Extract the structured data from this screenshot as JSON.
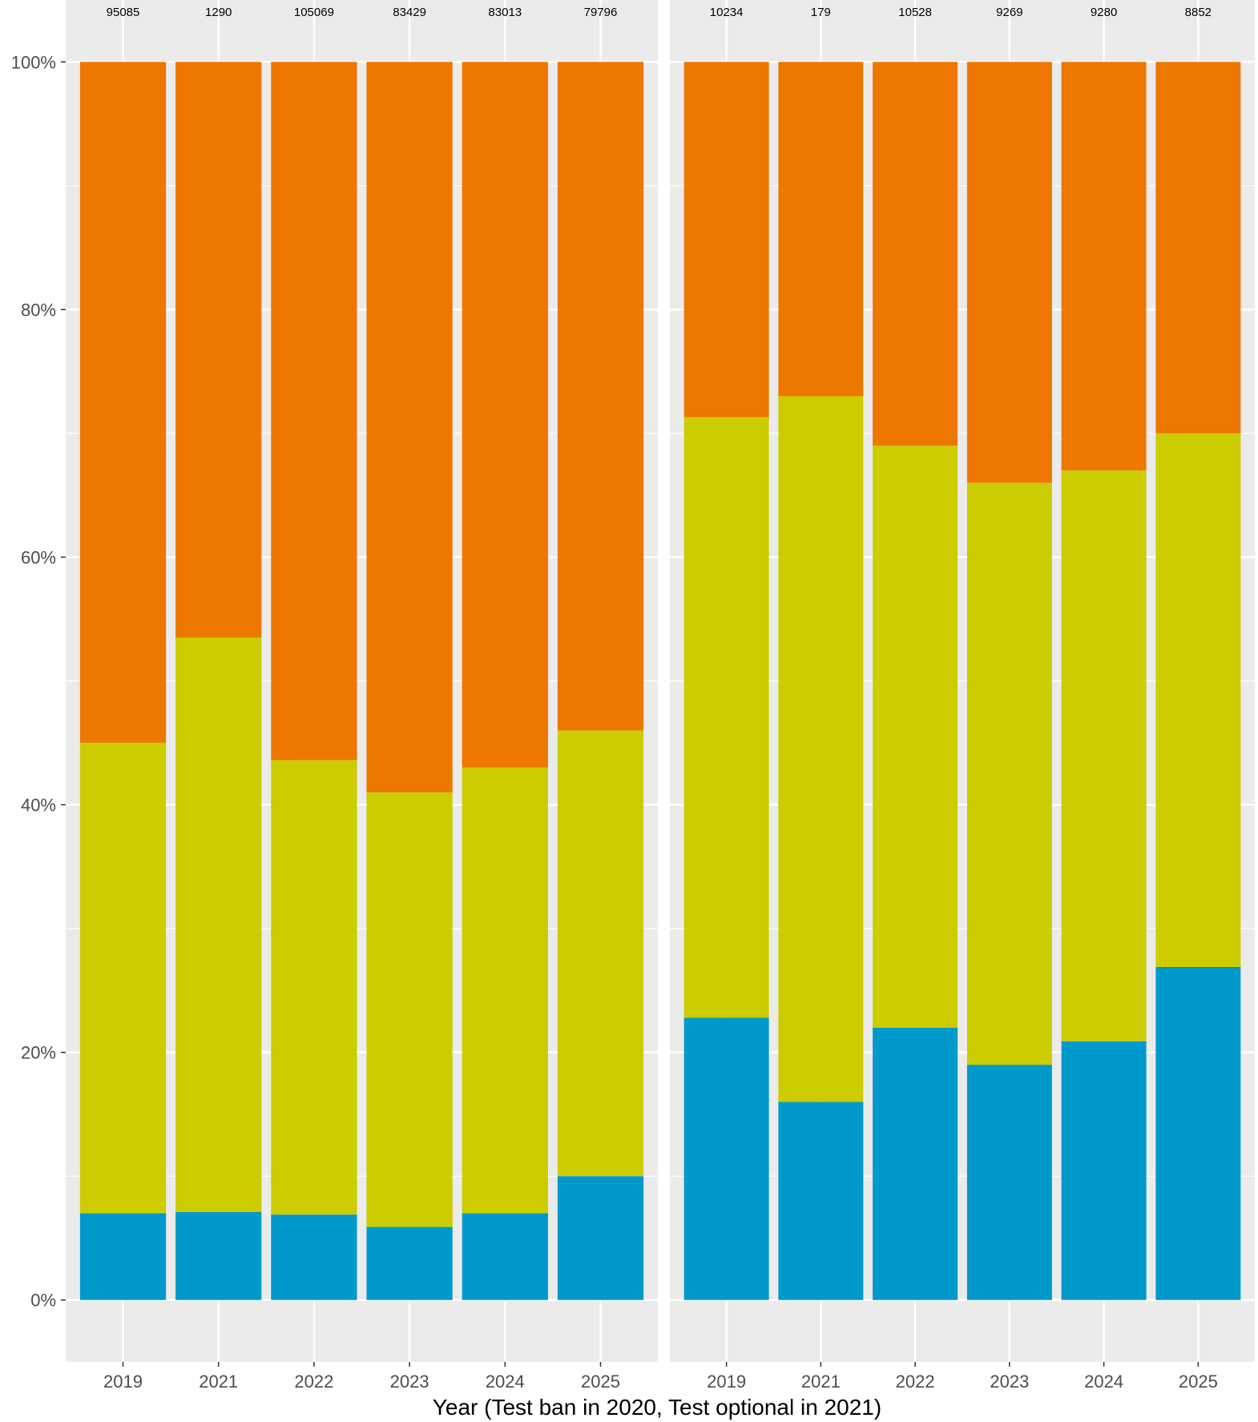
{
  "chart_data": {
    "type": "bar",
    "stacked": true,
    "percent": true,
    "xlabel": "Year (Test ban in 2020, Test optional in 2021)",
    "ylabel": "",
    "ylim": [
      -5,
      105
    ],
    "yticks": [
      "0%",
      "20%",
      "40%",
      "60%",
      "80%",
      "100%"
    ],
    "grid": true,
    "legend": "none",
    "colors": {
      "blue": "#0099cc",
      "yellow": "#cccc00",
      "orange": "#ee7700",
      "panel": "#ebebeb"
    },
    "panels": [
      {
        "categories": [
          "2019",
          "2021",
          "2022",
          "2023",
          "2024",
          "2025"
        ],
        "counts": [
          "95085",
          "1290",
          "105069",
          "83429",
          "83013",
          "79796"
        ],
        "series": [
          {
            "color": "blue",
            "values": [
              7.0,
              7.1,
              6.9,
              5.9,
              7.0,
              10.0
            ]
          },
          {
            "color": "yellow",
            "values": [
              38.0,
              46.4,
              36.7,
              35.1,
              36.0,
              36.0
            ]
          },
          {
            "color": "orange",
            "values": [
              55.0,
              46.5,
              56.4,
              59.0,
              57.0,
              54.0
            ]
          }
        ]
      },
      {
        "categories": [
          "2019",
          "2021",
          "2022",
          "2023",
          "2024",
          "2025"
        ],
        "counts": [
          "10234",
          "179",
          "10528",
          "9269",
          "9280",
          "8852"
        ],
        "series": [
          {
            "color": "blue",
            "values": [
              22.8,
              16.0,
              22.0,
              19.0,
              20.9,
              26.9
            ]
          },
          {
            "color": "yellow",
            "values": [
              48.5,
              57.0,
              47.0,
              47.0,
              46.1,
              43.1
            ]
          },
          {
            "color": "orange",
            "values": [
              28.7,
              27.0,
              31.0,
              34.0,
              33.0,
              30.0
            ]
          }
        ]
      }
    ]
  }
}
